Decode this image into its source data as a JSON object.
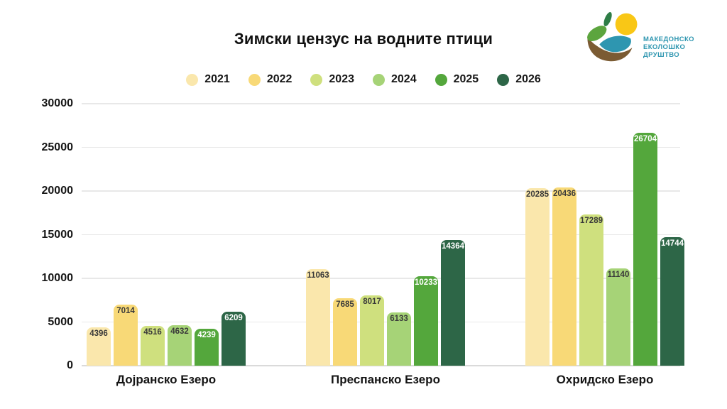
{
  "title": "Зимски цензус на водните птици",
  "logo": {
    "line1": "МАКЕДОНСКО",
    "line2": "ЕКОЛОШКО",
    "line3": "ДРУШТВО",
    "text_color": "#2E96B0",
    "sun_color": "#F9C716",
    "leaf_color": "#5CA53E",
    "small_leaf_color": "#2E7D46",
    "water_color": "#2E96B0",
    "bowl_color": "#7B5B33"
  },
  "chart_data": {
    "type": "bar",
    "title": "Зимски цензус на водните птици",
    "categories": [
      "Дојранско Езеро",
      "Преспанско Езеро",
      "Охридско Езеро"
    ],
    "series": [
      {
        "name": "2021",
        "color": "#FAE7AC",
        "label_color": "#3a3a3a",
        "values": [
          4396,
          11063,
          20285
        ]
      },
      {
        "name": "2022",
        "color": "#F8D977",
        "label_color": "#3a3a3a",
        "values": [
          7014,
          7685,
          20436
        ]
      },
      {
        "name": "2023",
        "color": "#CFE07E",
        "label_color": "#3a3a3a",
        "values": [
          4516,
          8017,
          17289
        ]
      },
      {
        "name": "2024",
        "color": "#A6D377",
        "label_color": "#3a3a3a",
        "values": [
          4632,
          6133,
          11140
        ]
      },
      {
        "name": "2025",
        "color": "#54A73C",
        "label_color": "#ffffff",
        "values": [
          4239,
          10233,
          26704
        ]
      },
      {
        "name": "2026",
        "color": "#2D6647",
        "label_color": "#ffffff",
        "values": [
          6209,
          14364,
          14744
        ]
      }
    ],
    "xlabel": "",
    "ylabel": "",
    "ylim": [
      0,
      30000
    ],
    "yticks": [
      0,
      5000,
      10000,
      15000,
      20000,
      25000,
      30000
    ],
    "grid": true,
    "legend_position": "top",
    "value_labels": "inside-top"
  }
}
